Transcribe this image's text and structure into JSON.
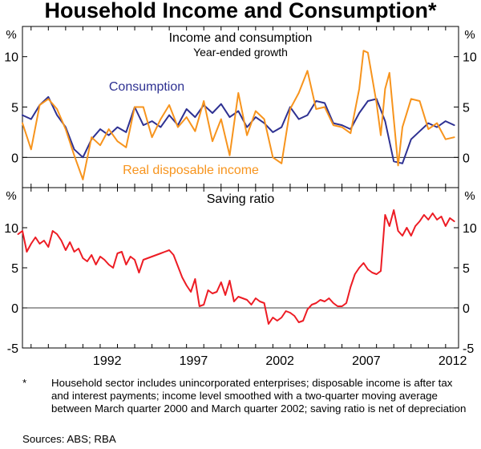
{
  "title": "Household Income and Consumption*",
  "footnote_mark": "*",
  "footnote": "Household sector includes unincorporated enterprises; disposable income is after tax and interest payments; income level smoothed with a two-quarter moving average between March quarter 2000 and March quarter 2002; saving ratio is net of depreciation",
  "sources": "Sources: ABS; RBA",
  "colors": {
    "consumption": "#2e3192",
    "income": "#f7941d",
    "saving": "#ed1c24",
    "axis": "#000000",
    "grid": "#999999"
  },
  "chart_data": [
    {
      "type": "line",
      "title": "Income and consumption",
      "subtitle": "Year-ended growth",
      "ylabel_left": "%",
      "ylabel_right": "%",
      "ylim": [
        -3,
        13
      ],
      "yticks": [
        0,
        5,
        10
      ],
      "xlim": [
        1987.5,
        2012.75
      ],
      "series": [
        {
          "name": "Consumption",
          "color": "#2e3192",
          "x": [
            1987.5,
            1988.0,
            1988.5,
            1989.0,
            1989.5,
            1990.0,
            1990.5,
            1991.0,
            1991.5,
            1992.0,
            1992.5,
            1993.0,
            1993.5,
            1994.0,
            1994.5,
            1995.0,
            1995.5,
            1996.0,
            1996.5,
            1997.0,
            1997.5,
            1998.0,
            1998.5,
            1999.0,
            1999.5,
            2000.0,
            2000.5,
            2001.0,
            2001.5,
            2002.0,
            2002.5,
            2003.0,
            2003.5,
            2004.0,
            2004.5,
            2005.0,
            2005.5,
            2006.0,
            2006.5,
            2007.0,
            2007.5,
            2008.0,
            2008.5,
            2009.0,
            2009.5,
            2010.0,
            2010.5,
            2011.0,
            2011.5,
            2012.0,
            2012.5
          ],
          "values": [
            4.2,
            3.8,
            5.2,
            6.0,
            4.2,
            3.0,
            0.8,
            0.0,
            1.8,
            2.8,
            2.2,
            3.0,
            2.5,
            5.0,
            3.2,
            3.6,
            3.0,
            4.2,
            3.2,
            4.8,
            4.0,
            5.2,
            4.4,
            5.3,
            4.0,
            4.6,
            3.0,
            4.0,
            3.4,
            2.5,
            3.0,
            5.0,
            3.8,
            4.2,
            5.6,
            5.4,
            3.4,
            3.2,
            2.8,
            4.4,
            5.6,
            5.8,
            3.6,
            -0.4,
            -0.6,
            1.8,
            2.6,
            3.4,
            3.0,
            3.6,
            3.2
          ]
        },
        {
          "name": "Real disposable income",
          "color": "#f7941d",
          "x": [
            1987.5,
            1988.0,
            1988.5,
            1989.0,
            1989.5,
            1990.0,
            1990.5,
            1991.0,
            1991.5,
            1992.0,
            1992.5,
            1993.0,
            1993.5,
            1994.0,
            1994.5,
            1995.0,
            1995.5,
            1996.0,
            1996.5,
            1997.0,
            1997.5,
            1998.0,
            1998.5,
            1999.0,
            1999.5,
            2000.0,
            2000.5,
            2001.0,
            2001.5,
            2002.0,
            2002.5,
            2003.0,
            2003.5,
            2004.0,
            2004.5,
            2005.0,
            2005.5,
            2006.0,
            2006.5,
            2007.0,
            2007.25,
            2007.5,
            2008.0,
            2008.25,
            2008.5,
            2008.75,
            2009.0,
            2009.25,
            2009.5,
            2010.0,
            2010.5,
            2011.0,
            2011.5,
            2012.0,
            2012.5
          ],
          "values": [
            3.4,
            0.8,
            5.2,
            5.8,
            4.8,
            2.8,
            0.2,
            -2.2,
            2.0,
            1.2,
            2.8,
            1.6,
            1.0,
            5.0,
            5.0,
            2.0,
            3.8,
            5.2,
            3.0,
            4.0,
            2.6,
            5.6,
            1.6,
            3.8,
            0.2,
            6.4,
            2.2,
            4.6,
            3.8,
            0.0,
            -0.6,
            4.8,
            6.4,
            8.6,
            4.8,
            5.0,
            3.2,
            3.0,
            2.4,
            6.8,
            10.6,
            10.4,
            5.4,
            2.2,
            6.8,
            8.4,
            3.8,
            -0.8,
            3.0,
            5.8,
            5.6,
            2.8,
            3.4,
            1.8,
            2.0
          ]
        }
      ],
      "labels": [
        {
          "text": "Consumption",
          "series": "Consumption"
        },
        {
          "text": "Real disposable income",
          "series": "Real disposable income"
        }
      ]
    },
    {
      "type": "line",
      "title": "Saving ratio",
      "ylabel_left": "%",
      "ylabel_right": "%",
      "ylim": [
        -5,
        15
      ],
      "yticks": [
        -5,
        0,
        5,
        10
      ],
      "xlim": [
        1987.5,
        2012.75
      ],
      "xticks": [
        1992,
        1997,
        2002,
        2007,
        2012
      ],
      "xticklabels": [
        "1992",
        "1997",
        "2002",
        "2007",
        "2012"
      ],
      "series": [
        {
          "name": "Saving ratio",
          "color": "#ed1c24",
          "x": [
            1987.25,
            1987.5,
            1987.75,
            1988.0,
            1988.25,
            1988.5,
            1988.75,
            1989.0,
            1989.25,
            1989.5,
            1989.75,
            1990.0,
            1990.25,
            1990.5,
            1990.75,
            1991.0,
            1991.25,
            1991.5,
            1991.75,
            1992.0,
            1992.25,
            1992.5,
            1992.75,
            1993.0,
            1993.25,
            1993.5,
            1993.75,
            1994.0,
            1994.25,
            1994.5,
            1994.75,
            1995.0,
            1995.25,
            1995.5,
            1995.75,
            1996.0,
            1996.25,
            1996.5,
            1996.75,
            1997.0,
            1997.25,
            1997.5,
            1997.75,
            1998.0,
            1998.25,
            1998.5,
            1998.75,
            1999.0,
            1999.25,
            1999.5,
            1999.75,
            2000.0,
            2000.25,
            2000.5,
            2000.75,
            2001.0,
            2001.25,
            2001.5,
            2001.75,
            2002.0,
            2002.25,
            2002.5,
            2002.75,
            2003.0,
            2003.25,
            2003.5,
            2003.75,
            2004.0,
            2004.25,
            2004.5,
            2004.75,
            2005.0,
            2005.25,
            2005.5,
            2005.75,
            2006.0,
            2006.25,
            2006.5,
            2006.75,
            2007.0,
            2007.25,
            2007.5,
            2007.75,
            2008.0,
            2008.25,
            2008.5,
            2008.75,
            2009.0,
            2009.25,
            2009.5,
            2009.75,
            2010.0,
            2010.25,
            2010.5,
            2010.75,
            2011.0,
            2011.25,
            2011.5,
            2011.75,
            2012.0,
            2012.25,
            2012.5
          ],
          "values": [
            9.2,
            9.6,
            7.0,
            8.0,
            8.8,
            8.0,
            8.4,
            7.6,
            9.6,
            9.2,
            8.4,
            7.2,
            8.2,
            7.0,
            7.4,
            6.2,
            5.8,
            6.6,
            5.4,
            6.4,
            6.0,
            5.4,
            5.0,
            6.8,
            7.0,
            5.4,
            6.4,
            6.0,
            4.4,
            6.0,
            6.2,
            6.4,
            6.6,
            6.8,
            7.0,
            7.2,
            6.6,
            5.2,
            3.8,
            2.8,
            2.0,
            3.6,
            0.2,
            0.4,
            2.2,
            1.8,
            2.0,
            3.2,
            1.6,
            3.4,
            0.8,
            1.4,
            1.2,
            1.0,
            0.4,
            1.2,
            0.8,
            0.6,
            -2.0,
            -1.2,
            -1.6,
            -1.2,
            -0.4,
            -0.6,
            -1.0,
            -1.8,
            -1.6,
            -0.2,
            0.4,
            0.6,
            1.0,
            0.8,
            1.2,
            0.6,
            0.2,
            0.2,
            0.6,
            2.6,
            4.2,
            5.0,
            5.6,
            4.8,
            4.4,
            4.2,
            4.6,
            11.6,
            10.2,
            12.2,
            9.6,
            9.0,
            10.0,
            9.0,
            10.2,
            10.8,
            11.6,
            11.0,
            11.8,
            11.0,
            11.4,
            10.2,
            11.2,
            10.8
          ]
        }
      ]
    }
  ]
}
